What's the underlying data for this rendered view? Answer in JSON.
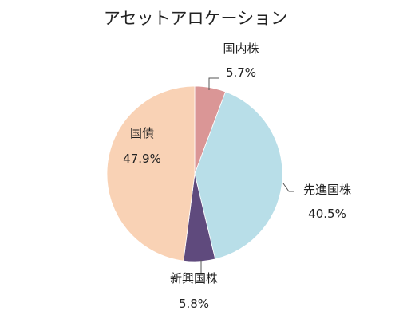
{
  "chart_data": {
    "type": "pie",
    "title": "アセットアロケーション",
    "slices": [
      {
        "label": "国内株",
        "value": 5.7,
        "display": "5.7%",
        "color": "#DA9696"
      },
      {
        "label": "先進国株",
        "value": 40.5,
        "display": "40.5%",
        "color": "#B8DEE8"
      },
      {
        "label": "新興国株",
        "value": 5.8,
        "display": "5.8%",
        "color": "#5F4A7D"
      },
      {
        "label": "国債",
        "value": 47.9,
        "display": "47.9%",
        "color": "#F9D2B5"
      }
    ],
    "start_angle": "12 o'clock",
    "direction": "clockwise",
    "legend": "none",
    "data_labels": "outside with leader lines"
  }
}
